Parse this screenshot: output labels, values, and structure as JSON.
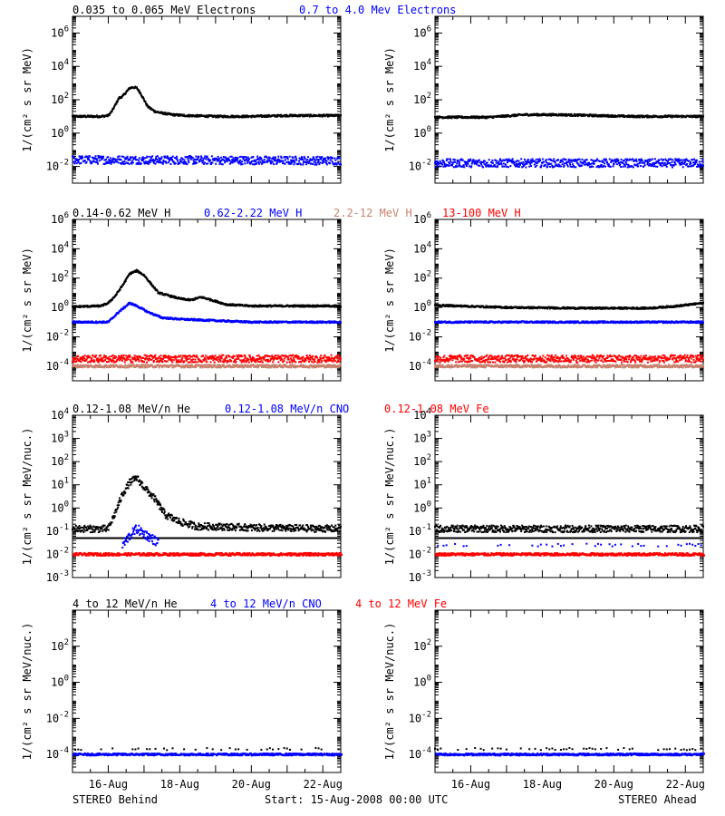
{
  "colors": {
    "black": "#000000",
    "blue": "#0000ff",
    "tan": "#c8826e",
    "red": "#ff0000"
  },
  "footer": {
    "left": "STEREO Behind",
    "center": "Start: 15-Aug-2008 00:00 UTC",
    "right": "STEREO Ahead"
  },
  "x_tick_labels": [
    "16-Aug",
    "18-Aug",
    "20-Aug",
    "22-Aug"
  ],
  "chart_data": [
    {
      "type": "scatter",
      "row": 1,
      "ylabel": "1/(cm² s sr MeV)",
      "ylog": true,
      "ylim_exp": [
        -3,
        7
      ],
      "tick_exps": [
        -2,
        0,
        2,
        4,
        6
      ],
      "xlim_days": [
        0,
        7.5
      ],
      "legend": [
        {
          "text": "0.035 to 0.065 MeV Electrons",
          "color": "black"
        },
        {
          "text": "0.7 to 4.0 Mev Electrons",
          "color": "blue"
        }
      ],
      "panels": [
        {
          "spacecraft": "STEREO Behind",
          "series": [
            {
              "legend_index": 0,
              "color": "black",
              "points": [
                [
                  0,
                  1.0
                ],
                [
                  0.8,
                  1.0
                ],
                [
                  1.0,
                  1.05
                ],
                [
                  1.1,
                  1.3
                ],
                [
                  1.2,
                  1.7
                ],
                [
                  1.3,
                  2.1
                ],
                [
                  1.4,
                  2.2
                ],
                [
                  1.5,
                  2.45
                ],
                [
                  1.6,
                  2.7
                ],
                [
                  1.7,
                  2.75
                ],
                [
                  1.8,
                  2.7
                ],
                [
                  1.9,
                  2.4
                ],
                [
                  2.0,
                  2.0
                ],
                [
                  2.1,
                  1.6
                ],
                [
                  2.3,
                  1.3
                ],
                [
                  2.5,
                  1.2
                ],
                [
                  2.8,
                  1.1
                ],
                [
                  3.2,
                  1.05
                ],
                [
                  4.0,
                  1.0
                ],
                [
                  5.0,
                  1.0
                ],
                [
                  6.0,
                  1.05
                ],
                [
                  7.5,
                  1.05
                ]
              ]
            },
            {
              "legend_index": 1,
              "color": "blue",
              "points": [
                [
                  0,
                  -1.6
                ],
                [
                  7.5,
                  -1.65
                ]
              ],
              "scatter": 0.25
            }
          ]
        },
        {
          "spacecraft": "STEREO Ahead",
          "series": [
            {
              "legend_index": 0,
              "color": "black",
              "points": [
                [
                  0,
                  0.95
                ],
                [
                  1.5,
                  0.95
                ],
                [
                  2.5,
                  1.1
                ],
                [
                  3.5,
                  1.1
                ],
                [
                  4.5,
                  1.05
                ],
                [
                  5.5,
                  1.0
                ],
                [
                  6.5,
                  1.0
                ],
                [
                  7.5,
                  1.0
                ]
              ]
            },
            {
              "legend_index": 1,
              "color": "blue",
              "points": [
                [
                  0,
                  -1.8
                ],
                [
                  7.5,
                  -1.8
                ]
              ],
              "scatter": 0.25
            }
          ]
        }
      ]
    },
    {
      "type": "scatter",
      "row": 2,
      "ylabel": "1/(cm² s sr MeV)",
      "ylog": true,
      "ylim_exp": [
        -5,
        6
      ],
      "tick_exps": [
        -4,
        -2,
        0,
        2,
        4,
        6
      ],
      "xlim_days": [
        0,
        7.5
      ],
      "legend": [
        {
          "text": "0.14-0.62 MeV H",
          "color": "black"
        },
        {
          "text": "0.62-2.22 MeV H",
          "color": "blue"
        },
        {
          "text": "2.2-12 MeV H",
          "color": "tan"
        },
        {
          "text": "13-100 MeV H",
          "color": "red"
        }
      ],
      "panels": [
        {
          "spacecraft": "STEREO Behind",
          "series": [
            {
              "legend_index": 0,
              "color": "black",
              "points": [
                [
                  0,
                  0.05
                ],
                [
                  0.8,
                  0.1
                ],
                [
                  1.0,
                  0.3
                ],
                [
                  1.2,
                  0.8
                ],
                [
                  1.4,
                  1.5
                ],
                [
                  1.6,
                  2.3
                ],
                [
                  1.8,
                  2.5
                ],
                [
                  2.0,
                  2.2
                ],
                [
                  2.2,
                  1.6
                ],
                [
                  2.4,
                  1.0
                ],
                [
                  2.7,
                  0.8
                ],
                [
                  3.0,
                  0.6
                ],
                [
                  3.3,
                  0.5
                ],
                [
                  3.6,
                  0.7
                ],
                [
                  3.9,
                  0.5
                ],
                [
                  4.3,
                  0.2
                ],
                [
                  5.0,
                  0.1
                ],
                [
                  6.0,
                  0.1
                ],
                [
                  7.5,
                  0.1
                ]
              ]
            },
            {
              "legend_index": 1,
              "color": "blue",
              "points": [
                [
                  0,
                  -1.0
                ],
                [
                  1.0,
                  -1.0
                ],
                [
                  1.3,
                  -0.3
                ],
                [
                  1.6,
                  0.3
                ],
                [
                  1.8,
                  0.1
                ],
                [
                  2.1,
                  -0.3
                ],
                [
                  2.5,
                  -0.7
                ],
                [
                  3.0,
                  -0.8
                ],
                [
                  4.0,
                  -0.9
                ],
                [
                  5.0,
                  -1.0
                ],
                [
                  7.5,
                  -1.0
                ]
              ]
            },
            {
              "legend_index": 2,
              "color": "tan",
              "points": [
                [
                  0,
                  -4.0
                ],
                [
                  7.5,
                  -4.0
                ]
              ],
              "scatter": 0.1
            },
            {
              "legend_index": 3,
              "color": "red",
              "points": [
                [
                  0,
                  -3.5
                ],
                [
                  7.5,
                  -3.5
                ]
              ],
              "scatter": 0.25
            }
          ]
        },
        {
          "spacecraft": "STEREO Ahead",
          "series": [
            {
              "legend_index": 0,
              "color": "black",
              "points": [
                [
                  0,
                  0.15
                ],
                [
                  2.0,
                  0.0
                ],
                [
                  4.0,
                  -0.05
                ],
                [
                  6.0,
                  -0.05
                ],
                [
                  6.8,
                  0.1
                ],
                [
                  7.5,
                  0.3
                ]
              ]
            },
            {
              "legend_index": 1,
              "color": "blue",
              "points": [
                [
                  0,
                  -1.0
                ],
                [
                  7.5,
                  -1.0
                ]
              ]
            },
            {
              "legend_index": 2,
              "color": "tan",
              "points": [
                [
                  0,
                  -4.0
                ],
                [
                  7.5,
                  -4.0
                ]
              ],
              "scatter": 0.1
            },
            {
              "legend_index": 3,
              "color": "red",
              "points": [
                [
                  0,
                  -3.5
                ],
                [
                  7.5,
                  -3.5
                ]
              ],
              "scatter": 0.25
            }
          ]
        }
      ]
    },
    {
      "type": "scatter",
      "row": 3,
      "ylabel": "1/(cm² s sr MeV/nuc.)",
      "ylog": true,
      "ylim_exp": [
        -3,
        4
      ],
      "tick_exps": [
        -3,
        -2,
        -1,
        0,
        1,
        2,
        3,
        4
      ],
      "xlim_days": [
        0,
        7.5
      ],
      "legend": [
        {
          "text": "0.12-1.08 MeV/n He",
          "color": "black"
        },
        {
          "text": "0.12-1.08 MeV/n CNO",
          "color": "blue"
        },
        {
          "text": "0.12-1.08 MeV Fe",
          "color": "red"
        }
      ],
      "panels": [
        {
          "spacecraft": "STEREO Behind",
          "series": [
            {
              "legend_index": 0,
              "color": "black",
              "points": [
                [
                  0,
                  -0.9
                ],
                [
                  1.0,
                  -0.9
                ],
                [
                  1.2,
                  -0.2
                ],
                [
                  1.4,
                  0.6
                ],
                [
                  1.6,
                  1.1
                ],
                [
                  1.8,
                  1.3
                ],
                [
                  2.0,
                  0.9
                ],
                [
                  2.3,
                  0.4
                ],
                [
                  2.6,
                  -0.3
                ],
                [
                  3.0,
                  -0.6
                ],
                [
                  3.5,
                  -0.8
                ],
                [
                  4.0,
                  -0.8
                ],
                [
                  5.0,
                  -0.85
                ],
                [
                  7.5,
                  -0.9
                ]
              ],
              "scatter": 0.15
            },
            {
              "legend_index": 1,
              "color": "blue",
              "points": [
                [
                  1.4,
                  -1.6
                ],
                [
                  1.6,
                  -1.2
                ],
                [
                  1.8,
                  -0.9
                ],
                [
                  2.0,
                  -1.1
                ],
                [
                  2.4,
                  -1.5
                ]
              ],
              "scatter": 0.2
            },
            {
              "legend_index": 2,
              "color": "red",
              "points": [
                [
                  0,
                  -2.0
                ],
                [
                  7.5,
                  -2.0
                ]
              ],
              "background_level": true
            }
          ],
          "background_line_exp": -1.3
        },
        {
          "spacecraft": "STEREO Ahead",
          "series": [
            {
              "legend_index": 0,
              "color": "black",
              "points": [
                [
                  0,
                  -0.9
                ],
                [
                  7.5,
                  -0.9
                ]
              ],
              "scatter": 0.15
            },
            {
              "legend_index": 1,
              "color": "blue",
              "points": [
                [
                  0,
                  -1.6
                ],
                [
                  7.5,
                  -1.6
                ]
              ],
              "sparse": true
            },
            {
              "legend_index": 2,
              "color": "red",
              "points": [
                [
                  0,
                  -2.0
                ],
                [
                  7.5,
                  -2.0
                ]
              ],
              "background_level": true
            }
          ],
          "background_line_exp": -1.3
        }
      ]
    },
    {
      "type": "scatter",
      "row": 4,
      "ylabel": "1/(cm² s sr MeV/nuc.)",
      "ylog": true,
      "ylim_exp": [
        -5,
        4
      ],
      "tick_exps": [
        -4,
        -2,
        0,
        2
      ],
      "xlim_days": [
        0,
        7.5
      ],
      "legend": [
        {
          "text": "4 to 12 MeV/n He",
          "color": "black"
        },
        {
          "text": "4 to 12 MeV/n CNO",
          "color": "blue"
        },
        {
          "text": "4 to 12 MeV Fe",
          "color": "red"
        }
      ],
      "panels": [
        {
          "spacecraft": "STEREO Behind",
          "series": [
            {
              "legend_index": 0,
              "color": "black",
              "points": [
                [
                  0,
                  -3.7
                ],
                [
                  7.5,
                  -3.7
                ]
              ],
              "sparse": true
            },
            {
              "legend_index": 1,
              "color": "blue",
              "points": [
                [
                  0,
                  -4.0
                ],
                [
                  7.5,
                  -4.0
                ]
              ],
              "background_level": true
            },
            {
              "legend_index": 2,
              "color": "red",
              "points": [],
              "background_level": true
            }
          ]
        },
        {
          "spacecraft": "STEREO Ahead",
          "series": [
            {
              "legend_index": 0,
              "color": "black",
              "points": [
                [
                  0,
                  -3.7
                ],
                [
                  7.5,
                  -3.7
                ]
              ],
              "sparse": true
            },
            {
              "legend_index": 1,
              "color": "blue",
              "points": [
                [
                  0,
                  -4.0
                ],
                [
                  7.5,
                  -4.0
                ]
              ],
              "background_level": true
            },
            {
              "legend_index": 2,
              "color": "red",
              "points": [],
              "background_level": true
            }
          ]
        }
      ]
    }
  ]
}
